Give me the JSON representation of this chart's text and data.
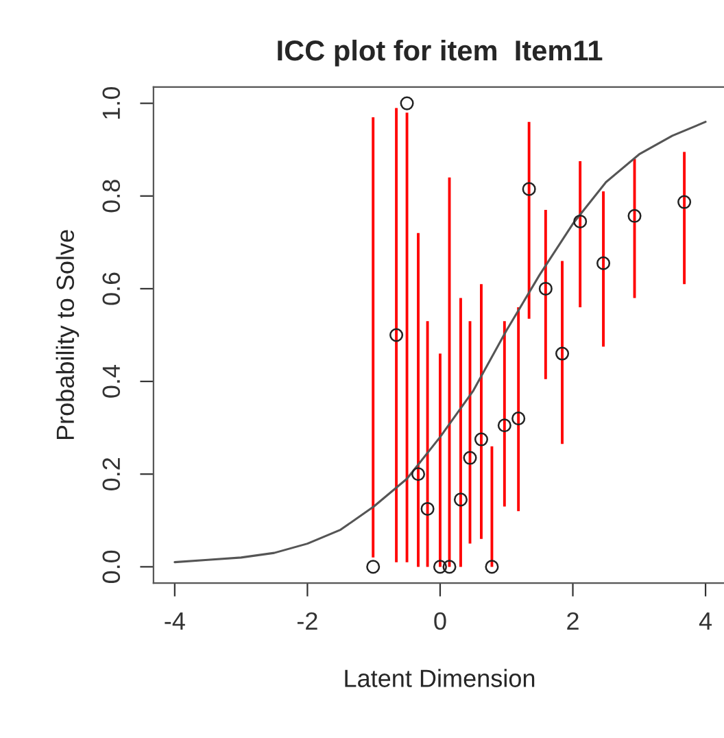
{
  "chart_data": {
    "type": "scatter",
    "title": "ICC plot for item  Item11",
    "xlabel": "Latent Dimension",
    "ylabel": "Probability to Solve",
    "xlim": [
      -4.32,
      4.3
    ],
    "ylim": [
      -0.035,
      1.035
    ],
    "xticks": [
      -4,
      -2,
      0,
      2,
      4
    ],
    "yticks": [
      {
        "value": 0,
        "label": "0.0"
      },
      {
        "value": 0.2,
        "label": "0.2"
      },
      {
        "value": 0.4,
        "label": "0.4"
      },
      {
        "value": 0.6,
        "label": "0.6"
      },
      {
        "value": 0.8,
        "label": "0.8"
      },
      {
        "value": 1.0,
        "label": "1.0"
      }
    ],
    "grid": false,
    "legend": false,
    "series": [
      {
        "type": "line",
        "color": "#555555",
        "marker": "none",
        "line_style": "solid",
        "x": [
          -4,
          -3.5,
          -3,
          -2.5,
          -2,
          -1.5,
          -1,
          -0.5,
          0,
          0.5,
          1,
          1.5,
          2,
          2.5,
          3,
          3.5,
          4
        ],
        "values": [
          0.01,
          0.015,
          0.02,
          0.03,
          0.05,
          0.08,
          0.13,
          0.19,
          0.28,
          0.38,
          0.51,
          0.63,
          0.74,
          0.83,
          0.89,
          0.93,
          0.96
        ]
      },
      {
        "color": "#222222",
        "marker": "circle",
        "x": [
          -1.01,
          -0.66,
          -0.5,
          -0.33,
          -0.19,
          0,
          0.14,
          0.31,
          0.45,
          0.62,
          0.78,
          0.97,
          1.18,
          1.34,
          1.59,
          1.84,
          2.11,
          2.46,
          2.93,
          3.68
        ],
        "values": [
          0,
          0.5,
          1.0,
          0.2,
          0.125,
          0,
          0,
          0.145,
          0.235,
          0.275,
          0,
          0.305,
          0.32,
          0.815,
          0.6,
          0.46,
          0.745,
          0.655,
          0.757,
          0.787
        ],
        "errors": [
          [
            0.02,
            0.97
          ],
          [
            0.01,
            0.99
          ],
          [
            0.01,
            0.98
          ],
          [
            0,
            0.72
          ],
          [
            0,
            0.53
          ],
          [
            0,
            0.46
          ],
          [
            0,
            0.84
          ],
          [
            0,
            0.58
          ],
          [
            0.05,
            0.53
          ],
          [
            0.06,
            0.61
          ],
          [
            0,
            0.26
          ],
          [
            0.13,
            0.53
          ],
          [
            0.12,
            0.56
          ],
          [
            0.535,
            0.96
          ],
          [
            0.405,
            0.77
          ],
          [
            0.265,
            0.66
          ],
          [
            0.56,
            0.875
          ],
          [
            0.475,
            0.81
          ],
          [
            0.58,
            0.88
          ],
          [
            0.61,
            0.895
          ]
        ]
      }
    ]
  }
}
